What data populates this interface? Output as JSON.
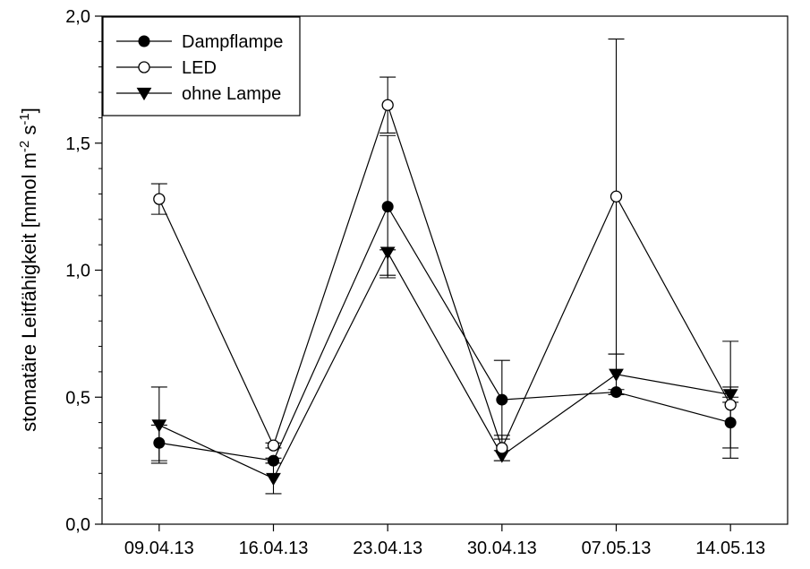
{
  "chart_data": {
    "type": "line",
    "ylabel_parts": {
      "main": "stomatäre Leitfähigkeit [mmol m",
      "exp1": "-2",
      "mid": " s",
      "exp2": "-1",
      "end": "]"
    },
    "x_dates": [
      "2013-04-09",
      "2013-04-16",
      "2013-04-23",
      "2013-04-30",
      "2013-05-07",
      "2013-05-14"
    ],
    "x_tick_labels": [
      "09.04.13",
      "16.04.13",
      "23.04.13",
      "30.04.13",
      "07.05.13",
      "14.05.13"
    ],
    "ylim": [
      0,
      2
    ],
    "y_ticks": [
      0,
      0.5,
      1.0,
      1.5,
      2.0
    ],
    "y_tick_labels": [
      "0,0",
      "0,5",
      "1,0",
      "1,5",
      "2,0"
    ],
    "grid": false,
    "legend_position": "top-left",
    "series": [
      {
        "name": "Dampflampe",
        "marker": "filled-circle",
        "values": [
          0.32,
          0.25,
          1.25,
          0.49,
          0.52,
          0.4
        ],
        "err_plus": [
          0.07,
          0.01,
          0.28,
          0.155,
          0.01,
          0.1
        ],
        "err_minus": [
          0.07,
          0.01,
          0.28,
          0.155,
          0.01,
          0.1
        ]
      },
      {
        "name": "LED",
        "marker": "open-circle",
        "values": [
          1.28,
          0.31,
          1.65,
          0.3,
          1.29,
          0.47
        ],
        "err_plus": [
          0.06,
          0.01,
          0.11,
          0.05,
          0.62,
          0.25
        ],
        "err_minus": [
          0.06,
          0.01,
          0.11,
          0.05,
          0.62,
          0.21
        ]
      },
      {
        "name": "ohne Lampe",
        "marker": "filled-triangle-down",
        "values": [
          0.39,
          0.18,
          1.07,
          0.27,
          0.59,
          0.51
        ],
        "err_plus": [
          0.15,
          0.06,
          0.01,
          0.02,
          0.08,
          0.03
        ],
        "err_minus": [
          0.15,
          0.06,
          0.09,
          0.02,
          0.08,
          0.03
        ]
      }
    ]
  }
}
